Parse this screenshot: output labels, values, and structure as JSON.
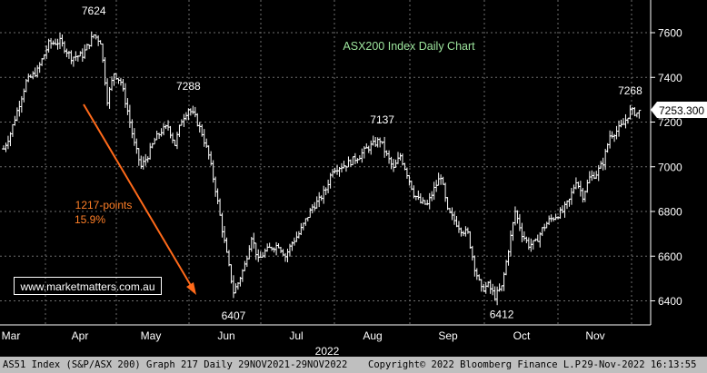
{
  "chart_data": {
    "type": "bar",
    "style": "ohlc",
    "title": "ASX200 Index Daily Chart",
    "xlabel": "2022",
    "ylabel": "",
    "ylim": [
      6300,
      7760
    ],
    "y_ticks": [
      6400,
      6600,
      6800,
      7000,
      7200,
      7400,
      7600
    ],
    "x_month_labels": [
      "Mar",
      "Apr",
      "May",
      "Jun",
      "Jul",
      "Aug",
      "Sep",
      "Oct",
      "Nov"
    ],
    "last_price": "7253.300",
    "peak_labels": [
      {
        "label": "7624",
        "day": 40,
        "value": 7624
      },
      {
        "label": "7288",
        "day": 82,
        "value": 7288
      },
      {
        "label": "6407",
        "day": 102,
        "value": 6407
      },
      {
        "label": "7137",
        "day": 168,
        "value": 7137
      },
      {
        "label": "6412",
        "day": 221,
        "value": 6412
      },
      {
        "label": "7268",
        "day": 278,
        "value": 7268
      }
    ],
    "annotation": {
      "line1": "1217-points",
      "line2": "15.9%"
    },
    "anchors": [
      [
        0,
        7080
      ],
      [
        3,
        7150
      ],
      [
        6,
        7250
      ],
      [
        10,
        7380
      ],
      [
        15,
        7430
      ],
      [
        20,
        7550
      ],
      [
        25,
        7560
      ],
      [
        30,
        7490
      ],
      [
        35,
        7500
      ],
      [
        40,
        7590
      ],
      [
        43,
        7560
      ],
      [
        46,
        7300
      ],
      [
        49,
        7420
      ],
      [
        52,
        7380
      ],
      [
        55,
        7250
      ],
      [
        58,
        7100
      ],
      [
        61,
        7000
      ],
      [
        64,
        7050
      ],
      [
        67,
        7120
      ],
      [
        70,
        7160
      ],
      [
        73,
        7180
      ],
      [
        76,
        7100
      ],
      [
        79,
        7210
      ],
      [
        82,
        7260
      ],
      [
        85,
        7220
      ],
      [
        88,
        7150
      ],
      [
        91,
        7050
      ],
      [
        94,
        6900
      ],
      [
        97,
        6720
      ],
      [
        100,
        6550
      ],
      [
        102,
        6440
      ],
      [
        104,
        6480
      ],
      [
        107,
        6560
      ],
      [
        110,
        6690
      ],
      [
        113,
        6580
      ],
      [
        116,
        6620
      ],
      [
        119,
        6640
      ],
      [
        122,
        6650
      ],
      [
        125,
        6600
      ],
      [
        128,
        6660
      ],
      [
        131,
        6700
      ],
      [
        134,
        6760
      ],
      [
        137,
        6820
      ],
      [
        140,
        6850
      ],
      [
        143,
        6900
      ],
      [
        146,
        6990
      ],
      [
        149,
        7000
      ],
      [
        152,
        7010
      ],
      [
        155,
        7030
      ],
      [
        158,
        7050
      ],
      [
        161,
        7080
      ],
      [
        164,
        7100
      ],
      [
        167,
        7120
      ],
      [
        170,
        7050
      ],
      [
        173,
        6990
      ],
      [
        176,
        7050
      ],
      [
        179,
        6970
      ],
      [
        182,
        6880
      ],
      [
        185,
        6840
      ],
      [
        188,
        6830
      ],
      [
        191,
        6900
      ],
      [
        194,
        6960
      ],
      [
        197,
        6800
      ],
      [
        200,
        6760
      ],
      [
        203,
        6720
      ],
      [
        206,
        6700
      ],
      [
        209,
        6550
      ],
      [
        212,
        6450
      ],
      [
        215,
        6470
      ],
      [
        218,
        6420
      ],
      [
        221,
        6460
      ],
      [
        224,
        6630
      ],
      [
        227,
        6800
      ],
      [
        230,
        6700
      ],
      [
        233,
        6650
      ],
      [
        236,
        6660
      ],
      [
        239,
        6720
      ],
      [
        242,
        6760
      ],
      [
        245,
        6780
      ],
      [
        248,
        6800
      ],
      [
        251,
        6850
      ],
      [
        254,
        6940
      ],
      [
        257,
        6870
      ],
      [
        260,
        6950
      ],
      [
        263,
        6970
      ],
      [
        266,
        7020
      ],
      [
        269,
        7140
      ],
      [
        272,
        7160
      ],
      [
        275,
        7190
      ],
      [
        278,
        7250
      ],
      [
        281,
        7240
      ],
      [
        283,
        7253
      ]
    ]
  },
  "footer": {
    "left": "AS51 Index (S&P/ASX 200) Graph 217  Daily 29NOV2021-29NOV2022",
    "center": "Copyright© 2022 Bloomberg Finance L.P.",
    "right": "29-Nov-2022 16:13:55"
  },
  "website": "www.marketmatters.com.au",
  "colors": {
    "price_bars": "#ffffff",
    "grid": "#6e6e6e",
    "title": "#9ee69e",
    "annotation": "#ff7f27",
    "arrow": "#ff6a1a",
    "footer_bg": "#bfbfbf"
  }
}
